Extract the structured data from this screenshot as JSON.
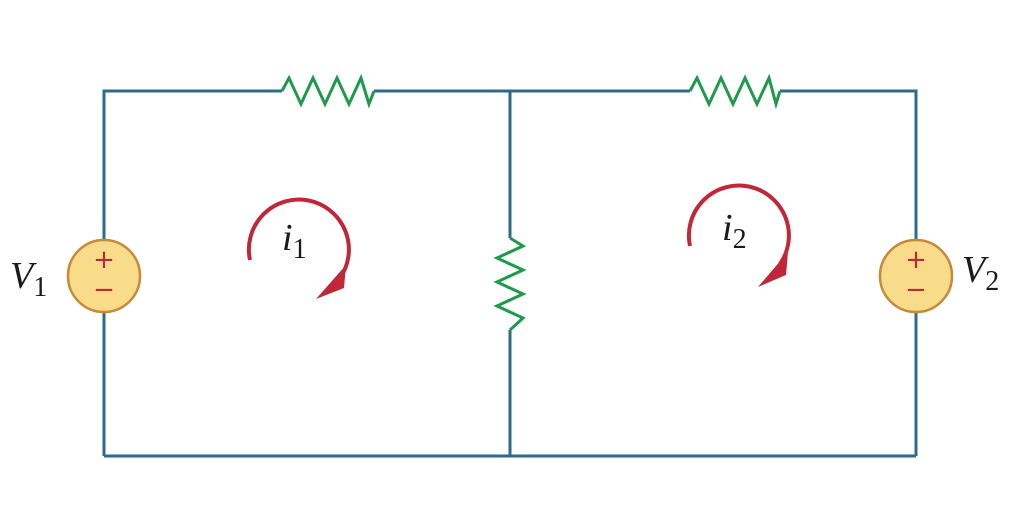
{
  "labels": {
    "v1": {
      "main": "V",
      "sub": "1"
    },
    "v2": {
      "main": "V",
      "sub": "2"
    },
    "i1": {
      "main": "i",
      "sub": "1"
    },
    "i2": {
      "main": "i",
      "sub": "2"
    }
  },
  "sources": {
    "v1": {
      "plus": "+",
      "minus": "−"
    },
    "v2": {
      "plus": "+",
      "minus": "−"
    }
  },
  "colors": {
    "wire": "#2e6b8a",
    "resistor": "#1f9a4a",
    "source_fill": "#f9dc8a",
    "source_outline": "#c58a3a",
    "polarity": "#c0283a",
    "loop_arrow": "#c0283a"
  }
}
